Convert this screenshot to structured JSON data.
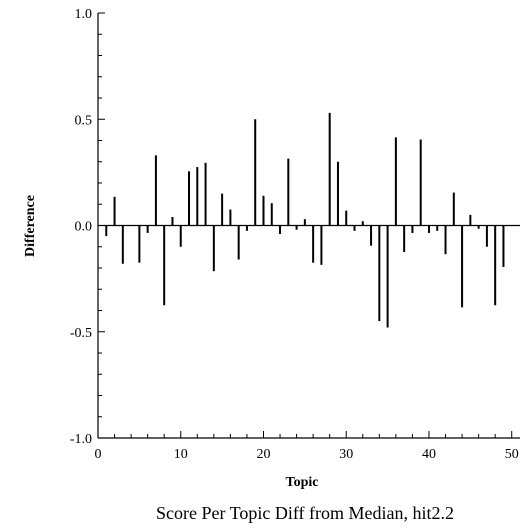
{
  "chart_data": {
    "type": "bar",
    "title": "Score Per Topic Diff from Median, hit2.2",
    "xlabel": "Topic",
    "ylabel": "Difference",
    "xlim": [
      0,
      51
    ],
    "ylim": [
      -1.0,
      1.0
    ],
    "x_ticks": [
      0,
      10,
      20,
      30,
      40,
      50
    ],
    "x_tick_labels": [
      "0",
      "10",
      "20",
      "30",
      "40",
      "50"
    ],
    "y_ticks": [
      -1.0,
      -0.5,
      0.0,
      0.5,
      1.0
    ],
    "y_tick_labels": [
      "-1.0",
      "-0.5",
      "0.0",
      "0.5",
      "1.0"
    ],
    "grid": false,
    "legend": "none",
    "colors": {
      "bars": "#000000",
      "axes": "#000000",
      "background": "#ffffff"
    },
    "x": [
      1,
      2,
      3,
      4,
      5,
      6,
      7,
      8,
      9,
      10,
      11,
      12,
      13,
      14,
      15,
      16,
      17,
      18,
      19,
      20,
      21,
      22,
      23,
      24,
      25,
      26,
      27,
      28,
      29,
      30,
      31,
      32,
      33,
      34,
      35,
      36,
      37,
      38,
      39,
      40,
      41,
      42,
      43,
      44,
      45,
      46,
      47,
      48,
      49,
      50
    ],
    "values": [
      -0.05,
      0.135,
      -0.18,
      0.0,
      -0.175,
      -0.035,
      0.33,
      -0.375,
      0.04,
      -0.1,
      0.255,
      0.275,
      0.295,
      -0.215,
      0.15,
      0.075,
      -0.16,
      -0.025,
      0.5,
      0.14,
      0.105,
      -0.04,
      0.315,
      -0.02,
      0.03,
      -0.175,
      -0.185,
      0.53,
      0.3,
      0.07,
      -0.025,
      0.02,
      -0.095,
      -0.45,
      -0.48,
      0.415,
      -0.125,
      -0.035,
      0.405,
      -0.035,
      -0.025,
      -0.135,
      0.155,
      -0.385,
      0.05,
      -0.015,
      -0.1,
      -0.375,
      -0.195,
      0.0
    ]
  }
}
